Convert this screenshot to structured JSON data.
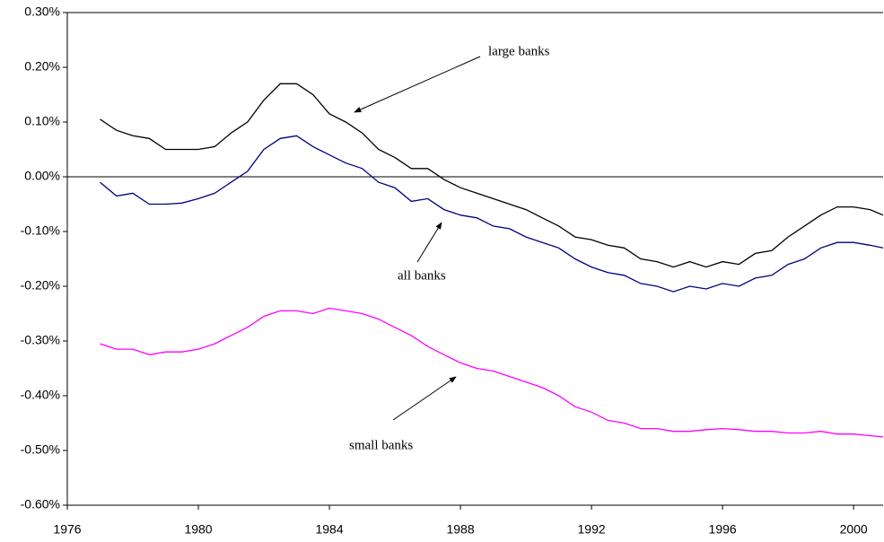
{
  "chart_data": {
    "type": "line",
    "x": [
      1977,
      1977.5,
      1978,
      1978.5,
      1979,
      1979.5,
      1980,
      1980.5,
      1981,
      1981.5,
      1982,
      1982.5,
      1983,
      1983.5,
      1984,
      1984.5,
      1985,
      1985.5,
      1986,
      1986.5,
      1987,
      1987.5,
      1988,
      1988.5,
      1989,
      1989.5,
      1990,
      1990.5,
      1991,
      1991.5,
      1992,
      1992.5,
      1993,
      1993.5,
      1994,
      1994.5,
      1995,
      1995.5,
      1996,
      1996.5,
      1997,
      1997.5,
      1998,
      1998.5,
      1999,
      1999.5,
      2000,
      2000.5,
      2000.9
    ],
    "series": [
      {
        "name": "large banks",
        "color": "#000000",
        "values": [
          0.105,
          0.085,
          0.075,
          0.07,
          0.05,
          0.05,
          0.05,
          0.055,
          0.08,
          0.1,
          0.14,
          0.17,
          0.17,
          0.15,
          0.115,
          0.1,
          0.08,
          0.05,
          0.035,
          0.015,
          0.015,
          -0.005,
          -0.02,
          -0.03,
          -0.04,
          -0.05,
          -0.06,
          -0.075,
          -0.09,
          -0.11,
          -0.115,
          -0.125,
          -0.13,
          -0.15,
          -0.155,
          -0.165,
          -0.155,
          -0.165,
          -0.155,
          -0.16,
          -0.14,
          -0.135,
          -0.11,
          -0.09,
          -0.07,
          -0.055,
          -0.055,
          -0.06,
          -0.07
        ]
      },
      {
        "name": "all banks",
        "color": "#000080",
        "values": [
          -0.01,
          -0.035,
          -0.03,
          -0.05,
          -0.05,
          -0.048,
          -0.04,
          -0.03,
          -0.01,
          0.01,
          0.05,
          0.07,
          0.075,
          0.055,
          0.04,
          0.025,
          0.015,
          -0.01,
          -0.02,
          -0.045,
          -0.04,
          -0.06,
          -0.07,
          -0.075,
          -0.09,
          -0.095,
          -0.11,
          -0.12,
          -0.13,
          -0.15,
          -0.165,
          -0.175,
          -0.18,
          -0.195,
          -0.2,
          -0.21,
          -0.2,
          -0.205,
          -0.195,
          -0.2,
          -0.185,
          -0.18,
          -0.16,
          -0.15,
          -0.13,
          -0.12,
          -0.12,
          -0.125,
          -0.13
        ]
      },
      {
        "name": "small banks",
        "color": "#ff00ff",
        "values": [
          -0.305,
          -0.315,
          -0.315,
          -0.325,
          -0.32,
          -0.32,
          -0.315,
          -0.305,
          -0.29,
          -0.275,
          -0.255,
          -0.245,
          -0.245,
          -0.25,
          -0.24,
          -0.245,
          -0.25,
          -0.26,
          -0.275,
          -0.29,
          -0.31,
          -0.325,
          -0.34,
          -0.35,
          -0.355,
          -0.365,
          -0.375,
          -0.385,
          -0.4,
          -0.42,
          -0.43,
          -0.445,
          -0.45,
          -0.46,
          -0.46,
          -0.465,
          -0.465,
          -0.462,
          -0.46,
          -0.462,
          -0.465,
          -0.465,
          -0.468,
          -0.468,
          -0.465,
          -0.47,
          -0.47,
          -0.473,
          -0.475
        ]
      }
    ],
    "xlim": [
      1976,
      2000.9
    ],
    "xticks": [
      1976,
      1980,
      1984,
      1988,
      1992,
      1996,
      2000
    ],
    "ylim": [
      -0.6,
      0.3
    ],
    "yticks": [
      {
        "value": 0.3,
        "label": "0.30%"
      },
      {
        "value": 0.2,
        "label": "0.20%"
      },
      {
        "value": 0.1,
        "label": "0.10%"
      },
      {
        "value": 0,
        "label": "0.00%"
      },
      {
        "value": -0.1,
        "label": "-0.10%"
      },
      {
        "value": -0.2,
        "label": "-0.20%"
      },
      {
        "value": -0.3,
        "label": "-0.30%"
      },
      {
        "value": -0.4,
        "label": "-0.40%"
      },
      {
        "value": -0.5,
        "label": "-0.50%"
      },
      {
        "value": -0.6,
        "label": "-0.60%"
      }
    ]
  }
}
